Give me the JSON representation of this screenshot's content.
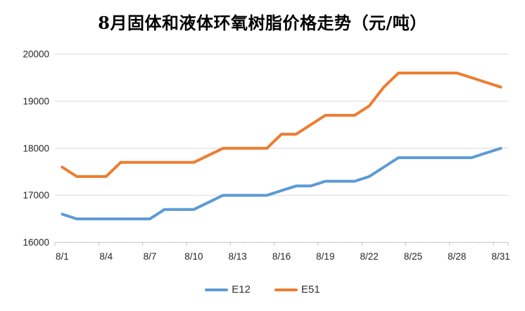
{
  "chart_data": {
    "type": "line",
    "title": "8月固体和液体环氧树脂价格走势（元/吨）",
    "xlabel": "",
    "ylabel": "",
    "ylim": [
      16000,
      20000
    ],
    "y_ticks": [
      16000,
      17000,
      18000,
      19000,
      20000
    ],
    "grid": true,
    "legend_position": "bottom",
    "x": [
      "8/1",
      "8/2",
      "8/3",
      "8/4",
      "8/5",
      "8/6",
      "8/7",
      "8/8",
      "8/9",
      "8/10",
      "8/11",
      "8/12",
      "8/13",
      "8/14",
      "8/15",
      "8/16",
      "8/17",
      "8/18",
      "8/19",
      "8/20",
      "8/21",
      "8/22",
      "8/23",
      "8/24",
      "8/25",
      "8/26",
      "8/27",
      "8/28",
      "8/29",
      "8/30",
      "8/31"
    ],
    "x_tick_labels": [
      "8/1",
      "8/4",
      "8/7",
      "8/10",
      "8/13",
      "8/16",
      "8/19",
      "8/22",
      "8/25",
      "8/28",
      "8/31"
    ],
    "series": [
      {
        "name": "E12",
        "color": "#5B9BD5",
        "values": [
          16600,
          16500,
          16500,
          16500,
          16500,
          16500,
          16500,
          16700,
          16700,
          16700,
          16850,
          17000,
          17000,
          17000,
          17000,
          17100,
          17200,
          17200,
          17300,
          17300,
          17300,
          17400,
          17600,
          17800,
          17800,
          17800,
          17800,
          17800,
          17800,
          17900,
          18000
        ]
      },
      {
        "name": "E51",
        "color": "#ED7D31",
        "values": [
          17600,
          17400,
          17400,
          17400,
          17700,
          17700,
          17700,
          17700,
          17700,
          17700,
          17850,
          18000,
          18000,
          18000,
          18000,
          18300,
          18300,
          18500,
          18700,
          18700,
          18700,
          18900,
          19300,
          19600,
          19600,
          19600,
          19600,
          19600,
          19500,
          19400,
          19300
        ]
      }
    ],
    "colors": {
      "gridline": "#D9D9D9",
      "axis_line": "#C6C6C6",
      "tick_label": "#262626",
      "title_text": "#000000",
      "background": "#FFFFFF"
    }
  }
}
